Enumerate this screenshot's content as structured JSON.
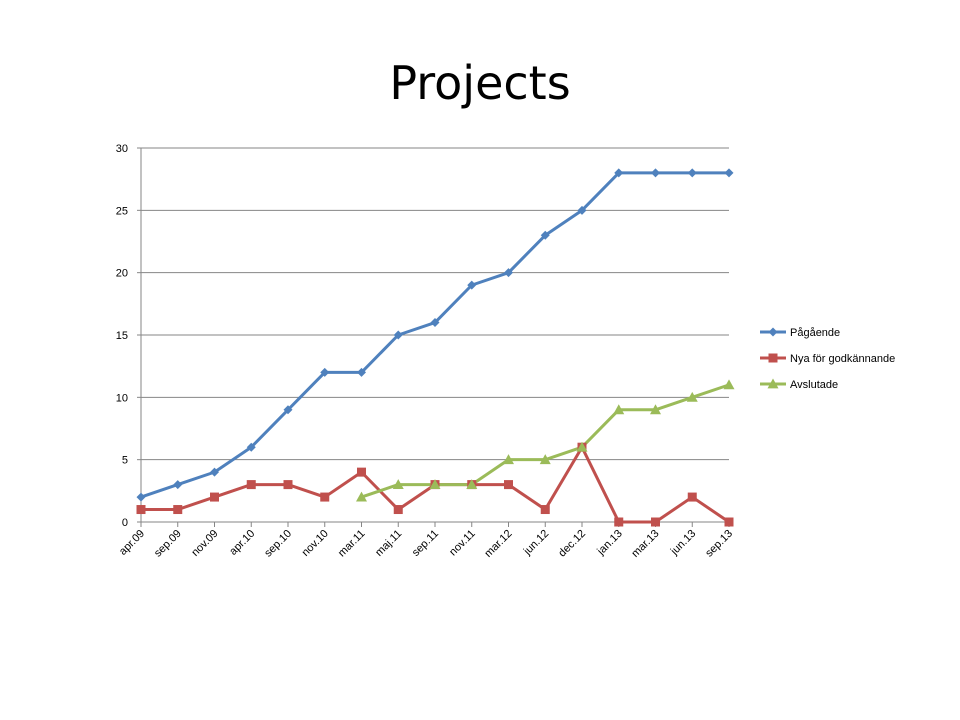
{
  "slide": {
    "title": "Projects"
  },
  "chart_data": {
    "type": "line",
    "title": "",
    "xlabel": "",
    "ylabel": "",
    "ylim": [
      0,
      30
    ],
    "y_ticks": [
      0,
      5,
      10,
      15,
      20,
      25,
      30
    ],
    "grid": "horizontal",
    "legend_position": "right",
    "categories": [
      "apr.09",
      "sep.09",
      "nov.09",
      "apr.10",
      "sep.10",
      "nov.10",
      "mar.11",
      "maj.11",
      "sep.11",
      "nov.11",
      "mar.12",
      "jun.12",
      "dec.12",
      "jan.13",
      "mar.13",
      "jun.13",
      "sep.13"
    ],
    "series": [
      {
        "name": "Pågående",
        "color": "#4F81BD",
        "marker": "diamond",
        "values": [
          2,
          3,
          4,
          6,
          9,
          12,
          12,
          15,
          16,
          19,
          20,
          23,
          25,
          28,
          28,
          28,
          28
        ]
      },
      {
        "name": "Nya för godkännande",
        "color": "#C0504D",
        "marker": "square",
        "values": [
          1,
          1,
          2,
          3,
          3,
          2,
          4,
          1,
          3,
          3,
          3,
          1,
          6,
          0,
          0,
          2,
          0
        ]
      },
      {
        "name": "Avslutade",
        "color": "#9BBB59",
        "marker": "triangle",
        "values": [
          null,
          null,
          null,
          null,
          null,
          null,
          2,
          3,
          3,
          3,
          5,
          5,
          6,
          9,
          9,
          10,
          11
        ]
      }
    ]
  }
}
